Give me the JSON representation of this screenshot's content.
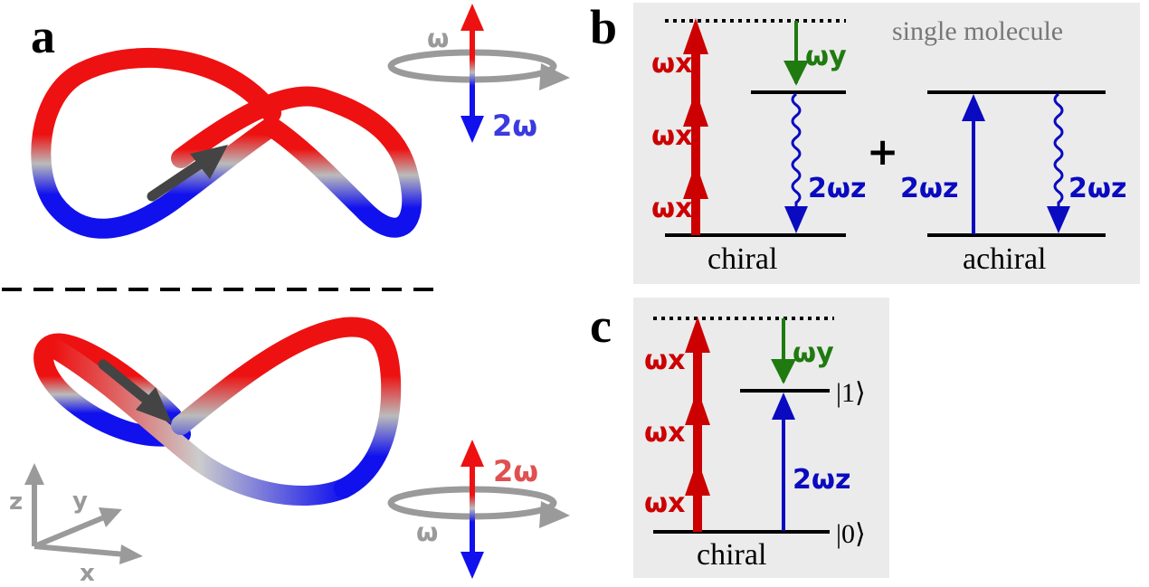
{
  "panels": {
    "a": {
      "label": "a",
      "top_rotation_label": "ω",
      "top_field_label": "2ω",
      "bottom_rotation_label": "ω",
      "bottom_field_label": "2ω",
      "axes": {
        "z": "z",
        "y": "y",
        "x": "x"
      }
    },
    "b": {
      "label": "b",
      "caption": "single molecule",
      "omega_x": "ωx",
      "omega_y": "ωy",
      "two_omega_z": "2ωz",
      "plus": "+",
      "chiral_label": "chiral",
      "achiral_label": "achiral"
    },
    "c": {
      "label": "c",
      "omega_x": "ωx",
      "omega_y": "ωy",
      "two_omega_z": "2ωz",
      "state_1": "|1⟩",
      "state_0": "|0⟩",
      "chiral_label": "chiral"
    }
  },
  "colors": {
    "red": "#ee1111",
    "dark_red": "#cc0000",
    "blue": "#1111ee",
    "dark_blue": "#0a0ac0",
    "green": "#1f7a0f",
    "gray": "#9a9a9a",
    "dark_gray": "#444444",
    "panel_bg": "#ebebeb",
    "field_label_blue": "#3a3ae0",
    "field_label_red": "#e05050"
  }
}
